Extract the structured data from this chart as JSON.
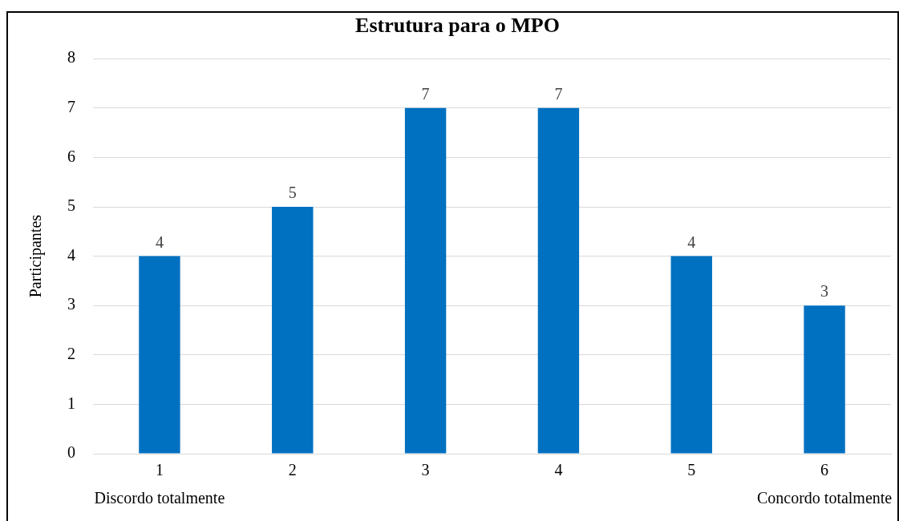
{
  "chart_data": {
    "type": "bar",
    "title": "Estrutura para o MPO",
    "ylabel": "Participantes",
    "categories": [
      "1",
      "2",
      "3",
      "4",
      "5",
      "6"
    ],
    "values": [
      4,
      5,
      7,
      7,
      4,
      3
    ],
    "color": "#0070c0",
    "ylim": [
      0,
      8
    ],
    "yticks": [
      0,
      1,
      2,
      3,
      4,
      5,
      6,
      7,
      8
    ],
    "grid": "y",
    "legend": false,
    "data_labels": true,
    "annotations": [
      "Discordo totalmente",
      "Concordo totalmente"
    ]
  }
}
